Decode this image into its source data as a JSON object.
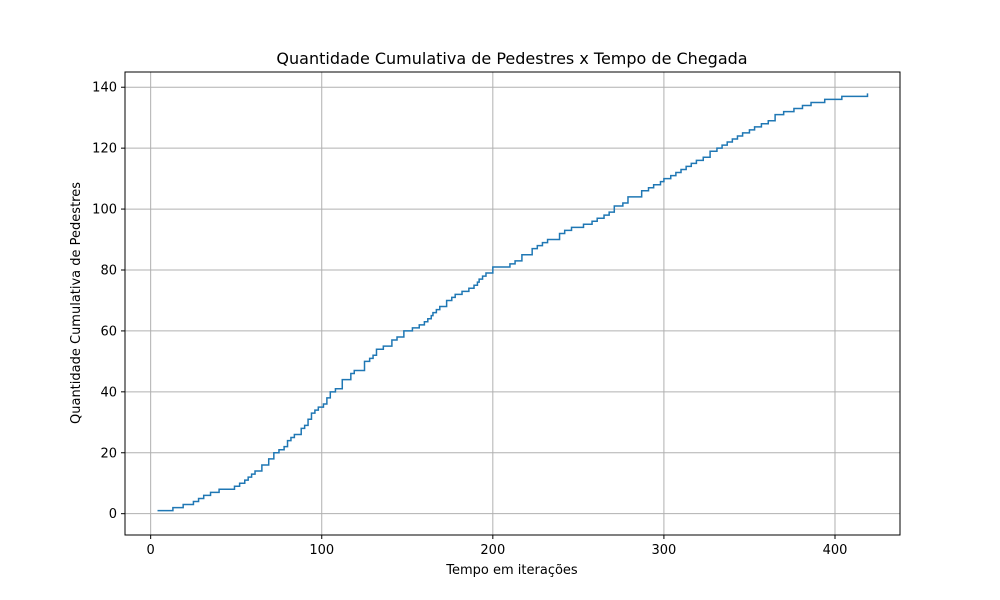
{
  "chart_data": {
    "type": "line",
    "step": "post",
    "title": "Quantidade Cumulativa de Pedestres x Tempo de Chegada",
    "xlabel": "Tempo em iterações",
    "ylabel": "Quantidade Cumulativa de Pedestres",
    "xlim": [
      -15,
      438
    ],
    "ylim": [
      -7,
      145
    ],
    "xticks": [
      0,
      100,
      200,
      300,
      400
    ],
    "yticks": [
      0,
      20,
      40,
      60,
      80,
      100,
      120,
      140
    ],
    "grid": true,
    "series": [
      {
        "color": "#1f77b4",
        "points": [
          [
            4,
            1
          ],
          [
            13,
            2
          ],
          [
            19,
            3
          ],
          [
            25,
            4
          ],
          [
            28,
            5
          ],
          [
            31,
            6
          ],
          [
            35,
            7
          ],
          [
            40,
            8
          ],
          [
            49,
            9
          ],
          [
            52,
            10
          ],
          [
            55,
            11
          ],
          [
            57,
            12
          ],
          [
            59,
            13
          ],
          [
            61,
            14
          ],
          [
            65,
            16
          ],
          [
            69,
            18
          ],
          [
            72,
            20
          ],
          [
            75,
            21
          ],
          [
            78,
            22
          ],
          [
            80,
            24
          ],
          [
            82,
            25
          ],
          [
            84,
            26
          ],
          [
            88,
            28
          ],
          [
            90,
            29
          ],
          [
            92,
            31
          ],
          [
            94,
            33
          ],
          [
            96,
            34
          ],
          [
            98,
            35
          ],
          [
            101,
            36
          ],
          [
            103,
            38
          ],
          [
            105,
            40
          ],
          [
            108,
            41
          ],
          [
            112,
            44
          ],
          [
            117,
            46
          ],
          [
            119,
            47
          ],
          [
            125,
            50
          ],
          [
            128,
            51
          ],
          [
            130,
            52
          ],
          [
            132,
            54
          ],
          [
            136,
            55
          ],
          [
            141,
            57
          ],
          [
            144,
            58
          ],
          [
            148,
            60
          ],
          [
            153,
            61
          ],
          [
            157,
            62
          ],
          [
            160,
            63
          ],
          [
            162,
            64
          ],
          [
            164,
            65
          ],
          [
            165,
            66
          ],
          [
            167,
            67
          ],
          [
            169,
            68
          ],
          [
            173,
            70
          ],
          [
            176,
            71
          ],
          [
            178,
            72
          ],
          [
            182,
            73
          ],
          [
            186,
            74
          ],
          [
            189,
            75
          ],
          [
            191,
            76
          ],
          [
            192,
            77
          ],
          [
            194,
            78
          ],
          [
            196,
            79
          ],
          [
            200,
            81
          ],
          [
            210,
            82
          ],
          [
            213,
            83
          ],
          [
            217,
            85
          ],
          [
            223,
            87
          ],
          [
            226,
            88
          ],
          [
            229,
            89
          ],
          [
            232,
            90
          ],
          [
            239,
            92
          ],
          [
            242,
            93
          ],
          [
            246,
            94
          ],
          [
            253,
            95
          ],
          [
            258,
            96
          ],
          [
            261,
            97
          ],
          [
            265,
            98
          ],
          [
            268,
            99
          ],
          [
            271,
            101
          ],
          [
            276,
            102
          ],
          [
            279,
            104
          ],
          [
            287,
            106
          ],
          [
            291,
            107
          ],
          [
            294,
            108
          ],
          [
            298,
            109
          ],
          [
            300,
            110
          ],
          [
            304,
            111
          ],
          [
            307,
            112
          ],
          [
            310,
            113
          ],
          [
            313,
            114
          ],
          [
            316,
            115
          ],
          [
            319,
            116
          ],
          [
            323,
            117
          ],
          [
            327,
            119
          ],
          [
            331,
            120
          ],
          [
            334,
            121
          ],
          [
            337,
            122
          ],
          [
            340,
            123
          ],
          [
            343,
            124
          ],
          [
            346,
            125
          ],
          [
            350,
            126
          ],
          [
            353,
            127
          ],
          [
            357,
            128
          ],
          [
            361,
            129
          ],
          [
            365,
            131
          ],
          [
            370,
            132
          ],
          [
            376,
            133
          ],
          [
            381,
            134
          ],
          [
            386,
            135
          ],
          [
            394,
            136
          ],
          [
            404,
            137
          ],
          [
            419,
            138
          ]
        ]
      }
    ]
  }
}
